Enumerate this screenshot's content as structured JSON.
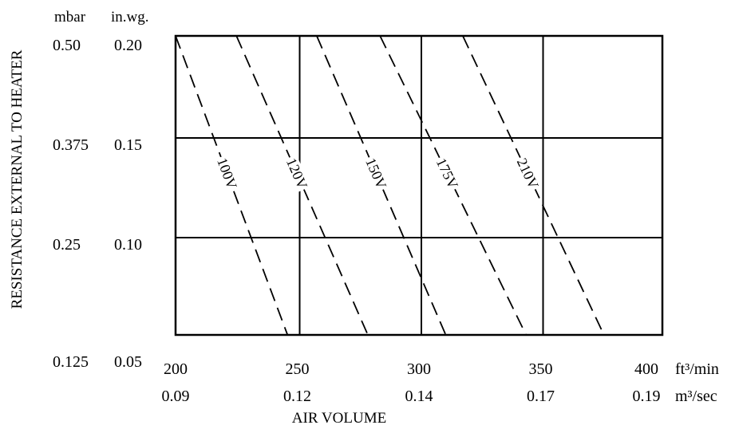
{
  "chart_data": {
    "type": "line",
    "xlabel": "AIR VOLUME",
    "ylabel": "RESISTANCE EXTERNAL TO HEATER",
    "x_unit_primary": "ft³/min",
    "x_unit_secondary": "m³/sec",
    "y_unit_primary": "mbar",
    "y_unit_secondary": "in.wg.",
    "xlim": [
      200,
      400
    ],
    "ylim": [
      0.05,
      0.2
    ],
    "x_ticks": [
      {
        "value": 200,
        "label": "200",
        "secondary": "0.09"
      },
      {
        "value": 250,
        "label": "250",
        "secondary": "0.12"
      },
      {
        "value": 300,
        "label": "300",
        "secondary": "0.14"
      },
      {
        "value": 350,
        "label": "350",
        "secondary": "0.17"
      },
      {
        "value": 400,
        "label": "400",
        "secondary": "0.19"
      }
    ],
    "y_ticks": [
      {
        "value": 0.2,
        "label": "0.20",
        "mbar": "0.50"
      },
      {
        "value": 0.15,
        "label": "0.15",
        "mbar": "0.375"
      },
      {
        "value": 0.1,
        "label": "0.10",
        "mbar": "0.25"
      },
      {
        "value": 0.05,
        "label": "0.05",
        "mbar": "0.125"
      }
    ],
    "grid": true,
    "series": [
      {
        "name": "100V",
        "x": [
          200,
          246
        ],
        "y": [
          0.2,
          0.05
        ]
      },
      {
        "name": "120V",
        "x": [
          225,
          279
        ],
        "y": [
          0.2,
          0.05
        ]
      },
      {
        "name": "150V",
        "x": [
          258,
          311
        ],
        "y": [
          0.2,
          0.05
        ]
      },
      {
        "name": "175V",
        "x": [
          284,
          344
        ],
        "y": [
          0.2,
          0.05
        ]
      },
      {
        "name": "210V",
        "x": [
          318,
          376
        ],
        "y": [
          0.2,
          0.05
        ]
      }
    ]
  }
}
